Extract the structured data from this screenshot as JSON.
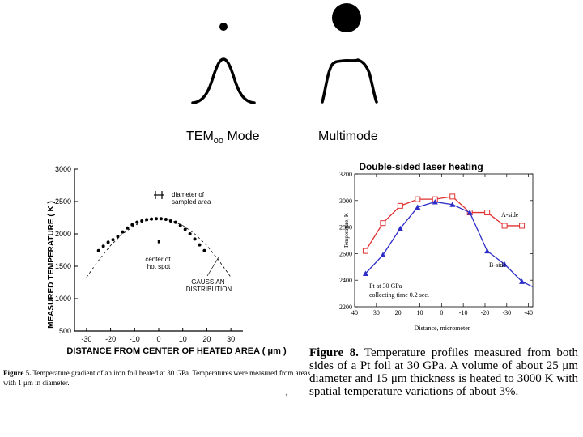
{
  "modes": {
    "tem": {
      "prefix": "TEM",
      "subscript": "oo",
      "suffix": " Mode"
    },
    "multimode": "Multimode"
  },
  "chart_data": [
    {
      "type": "scatter",
      "title": "",
      "xlabel": "DISTANCE FROM CENTER OF HEATED AREA ( μm )",
      "ylabel": "MEASURED TEMPERATURE ( K )",
      "xlim": [
        -35,
        35
      ],
      "ylim": [
        500,
        3000
      ],
      "xticks": [
        -30,
        -20,
        -10,
        0,
        10,
        20,
        30
      ],
      "xtick_labels": [
        "-30",
        "-20",
        "-10",
        "0",
        "10",
        "20",
        "30"
      ],
      "yticks": [
        500,
        1000,
        1500,
        2000,
        2500,
        3000
      ],
      "ytick_labels": [
        "500",
        "1000",
        "1500",
        "2000",
        "2500",
        "3000"
      ],
      "series": [
        {
          "name": "measured",
          "x": [
            -25,
            -23,
            -21,
            -19,
            -17,
            -15,
            -13,
            -11,
            -9,
            -7,
            -5,
            -3,
            -1,
            1,
            3,
            5,
            7,
            9,
            11,
            13,
            15,
            17,
            19
          ],
          "y": [
            1740,
            1810,
            1870,
            1910,
            1960,
            2030,
            2090,
            2140,
            2180,
            2200,
            2220,
            2230,
            2235,
            2235,
            2225,
            2200,
            2180,
            2130,
            2070,
            2000,
            1920,
            1830,
            1740
          ]
        },
        {
          "name": "gaussian fit",
          "x": [
            -30,
            -25,
            -20,
            -15,
            -10,
            -5,
            0,
            5,
            10,
            15,
            20,
            25,
            30
          ],
          "y": [
            1330,
            1590,
            1820,
            2000,
            2130,
            2210,
            2240,
            2210,
            2130,
            2000,
            1820,
            1590,
            1330
          ]
        }
      ],
      "center_point": {
        "x": 0,
        "y": 1880
      },
      "errorbar": {
        "x": 0,
        "y": 2600
      },
      "annotations": {
        "sampled_area": "diameter of\nsampled area",
        "hot_spot": "center of\nhot spot",
        "gaussian": "GAUSSIAN\nDISTRIBUTION"
      }
    },
    {
      "type": "line",
      "title": "Double-sided laser heating",
      "xlabel": "Distance, micrometer",
      "ylabel": "Temperature, K",
      "xlim": [
        40,
        -42
      ],
      "ylim": [
        2200,
        3200
      ],
      "xticks": [
        40,
        30,
        20,
        10,
        0,
        -10,
        -20,
        -30,
        -40
      ],
      "xtick_labels": [
        "40",
        "30",
        "20",
        "10",
        "0",
        "-10",
        "-20",
        "-30",
        "-40"
      ],
      "yticks": [
        2200,
        2400,
        2600,
        2800,
        3000,
        3200
      ],
      "ytick_labels": [
        "2200",
        "2400",
        "2600",
        "2800",
        "3000",
        "3200"
      ],
      "series": [
        {
          "name": "A-side",
          "color": "#e03030",
          "marker": "square",
          "x": [
            35,
            27,
            19,
            11,
            3,
            -5,
            -13,
            -21,
            -29,
            -37
          ],
          "y": [
            2620,
            2830,
            2960,
            3010,
            3010,
            3030,
            2910,
            2910,
            2810,
            2810
          ]
        },
        {
          "name": "B-side",
          "color": "#2d2dc8",
          "marker": "triangle",
          "x": [
            35,
            27,
            19,
            11,
            3,
            -5,
            -13,
            -21,
            -29,
            -37,
            -42
          ],
          "y": [
            2450,
            2590,
            2790,
            2950,
            2990,
            2970,
            2910,
            2620,
            2520,
            2390,
            2350
          ]
        }
      ],
      "inset": [
        "Pt at 30 GPa",
        "collecting time 0.2 sec."
      ]
    }
  ],
  "captions": {
    "left_label": "Figure 5.",
    "left_text": "  Temperature gradient of an iron foil heated at 30 GPa. Temperatures were measured from areas with 1 μm in diameter.",
    "right_label": "Figure 8.",
    "right_text": " Temperature profiles measured from both sides of a Pt foil at 30 GPa. A volume of about 25 μm diameter and 15 μm thickness is heated to 3000 K with spatial temperature variations of about 3%."
  },
  "stray_mark": ","
}
